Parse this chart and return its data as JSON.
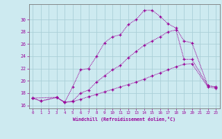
{
  "xlabel": "Windchill (Refroidissement éolien,°C)",
  "bg_color": "#cdeaf0",
  "grid_color": "#aacfd8",
  "line_color": "#990099",
  "spine_color": "#777777",
  "xlim": [
    -0.5,
    23.5
  ],
  "ylim": [
    15.5,
    32.5
  ],
  "xticks": [
    0,
    1,
    2,
    3,
    4,
    5,
    6,
    7,
    8,
    9,
    10,
    11,
    12,
    13,
    14,
    15,
    16,
    17,
    18,
    19,
    20,
    21,
    22,
    23
  ],
  "yticks": [
    16,
    18,
    20,
    22,
    24,
    26,
    28,
    30
  ],
  "curve1_x": [
    0,
    1,
    3,
    4,
    5,
    6,
    7,
    8,
    9,
    10,
    11,
    12,
    13,
    14,
    15,
    16,
    17,
    18,
    19,
    20,
    22,
    23
  ],
  "curve1_y": [
    17.2,
    16.7,
    17.3,
    16.5,
    19.0,
    21.8,
    22.0,
    24.0,
    26.2,
    27.2,
    27.5,
    29.2,
    30.0,
    31.5,
    31.5,
    30.5,
    29.3,
    28.6,
    26.5,
    26.2,
    19.2,
    19.0
  ],
  "curve2_x": [
    0,
    3,
    4,
    5,
    6,
    7,
    8,
    9,
    10,
    11,
    12,
    13,
    14,
    15,
    16,
    17,
    18,
    19,
    20,
    22,
    23
  ],
  "curve2_y": [
    17.2,
    17.3,
    16.5,
    16.7,
    18.0,
    18.5,
    19.8,
    20.8,
    21.8,
    22.5,
    23.8,
    24.8,
    25.8,
    26.5,
    27.2,
    28.0,
    28.3,
    23.5,
    23.5,
    19.2,
    19.0
  ],
  "curve3_x": [
    0,
    1,
    3,
    4,
    5,
    6,
    7,
    8,
    9,
    10,
    11,
    12,
    13,
    14,
    15,
    16,
    17,
    18,
    19,
    20,
    22,
    23
  ],
  "curve3_y": [
    17.2,
    16.7,
    17.3,
    16.5,
    16.6,
    17.0,
    17.4,
    17.8,
    18.2,
    18.6,
    19.0,
    19.4,
    19.8,
    20.3,
    20.8,
    21.3,
    21.8,
    22.3,
    22.7,
    22.8,
    19.0,
    18.8
  ]
}
